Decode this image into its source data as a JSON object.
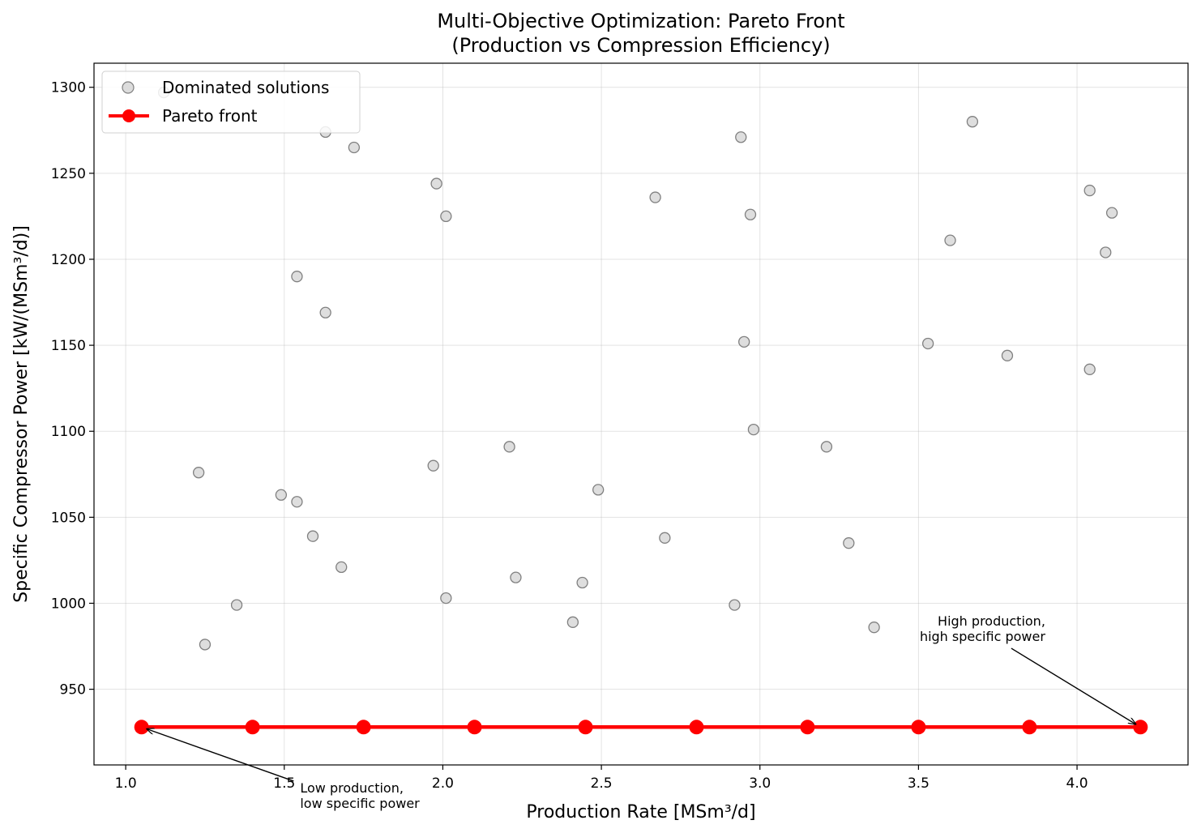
{
  "chart_data": {
    "type": "scatter",
    "title": "Multi-Objective Optimization: Pareto Front",
    "subtitle": "(Production vs Compression Efficiency)",
    "xlabel": "Production Rate [MSm³/d]",
    "ylabel": "Specific Compressor Power [kW/(MSm³/d)]",
    "xlim": [
      0.9,
      4.35
    ],
    "ylim": [
      906,
      1314
    ],
    "xticks": [
      1.0,
      1.5,
      2.0,
      2.5,
      3.0,
      3.5,
      4.0
    ],
    "xtick_labels": [
      "1.0",
      "1.5",
      "2.0",
      "2.5",
      "3.0",
      "3.5",
      "4.0"
    ],
    "yticks": [
      950,
      1000,
      1050,
      1100,
      1150,
      1200,
      1250,
      1300
    ],
    "ytick_labels": [
      "950",
      "1000",
      "1050",
      "1100",
      "1150",
      "1200",
      "1250",
      "1300"
    ],
    "grid": true,
    "legend_position": "top-left",
    "series": [
      {
        "name": "Dominated solutions",
        "kind": "scatter",
        "color": "#d3d3d3",
        "edge_color": "#808080",
        "x": [
          1.12,
          1.63,
          1.72,
          1.98,
          2.01,
          1.54,
          1.63,
          1.23,
          1.25,
          1.35,
          1.49,
          1.54,
          1.59,
          1.68,
          1.97,
          2.01,
          2.21,
          2.23,
          2.41,
          2.44,
          2.49,
          2.67,
          2.7,
          2.92,
          2.94,
          2.95,
          2.97,
          2.98,
          3.21,
          3.28,
          3.36,
          3.53,
          3.6,
          3.67,
          3.78,
          4.04,
          4.04,
          4.09,
          4.11
        ],
        "y": [
          1297,
          1274,
          1265,
          1244,
          1225,
          1190,
          1169,
          1076,
          976,
          999,
          1063,
          1059,
          1039,
          1021,
          1080,
          1003,
          1091,
          1015,
          989,
          1012,
          1066,
          1236,
          1038,
          999,
          1271,
          1152,
          1226,
          1101,
          1091,
          1035,
          986,
          1151,
          1211,
          1280,
          1144,
          1240,
          1136,
          1204,
          1227
        ]
      },
      {
        "name": "Pareto front",
        "kind": "line",
        "color": "#ff0000",
        "x": [
          1.05,
          1.4,
          1.75,
          2.1,
          2.45,
          2.8,
          3.15,
          3.5,
          3.85,
          4.2
        ],
        "y": [
          928,
          928,
          928,
          928,
          928,
          928,
          928,
          928,
          928,
          928
        ]
      }
    ],
    "annotations": [
      {
        "lines": [
          "Low production,",
          "low specific power"
        ],
        "point": [
          1.05,
          928
        ],
        "text_at": [
          1.55,
          890
        ],
        "align": "start"
      },
      {
        "lines": [
          "High production,",
          "high specific power"
        ],
        "point": [
          4.2,
          928
        ],
        "text_at": [
          3.9,
          987
        ],
        "align": "end"
      }
    ]
  }
}
